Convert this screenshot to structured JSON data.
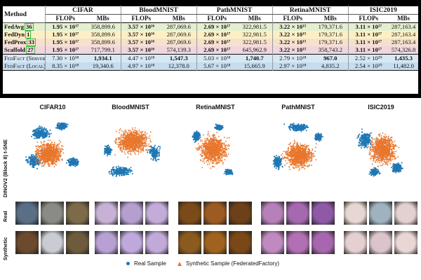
{
  "table": {
    "method_header": "Method",
    "datasets": [
      "CIFAR",
      "BloodMNIST",
      "PathMNIST",
      "RetinaMNIST",
      "ISIC2019"
    ],
    "subheaders": [
      "FLOPs",
      "MBs"
    ],
    "rows": [
      {
        "method": "FedAvg",
        "rank": "36",
        "style": "fedavg",
        "cells": [
          "1.95 × 10¹⁷",
          "358,899.6",
          "3.57 × 10¹⁶",
          "287,069.6",
          "2.69 × 10¹⁷",
          "322,981.5",
          "3.22 × 10¹⁵",
          "179,371.6",
          "3.11 × 10¹⁷",
          "287,163.4"
        ]
      },
      {
        "method": "FedDyn",
        "rank": "1",
        "style": "feddyn",
        "cells": [
          "1.95 × 10¹⁷",
          "358,899.6",
          "3.57 × 10¹⁶",
          "287,069.6",
          "2.69 × 10¹⁷",
          "322,981.5",
          "3.22 × 10¹⁵",
          "179,371.6",
          "3.11 × 10¹⁷",
          "287,163.4"
        ]
      },
      {
        "method": "FedProx",
        "rank": "33",
        "style": "fedprox",
        "cells": [
          "1.95 × 10¹⁷",
          "358,899.6",
          "3.57 × 10¹⁶",
          "287,069.6",
          "2.69 × 10¹⁷",
          "322,981.5",
          "3.22 × 10¹⁵",
          "179,371.6",
          "3.11 × 10¹⁷",
          "287,163.4"
        ]
      },
      {
        "method": "Scaffold",
        "rank": "27",
        "style": "scaffold",
        "cells": [
          "1.95 × 10¹⁷",
          "717,799.1",
          "3.57 × 10¹⁶",
          "574,139.3",
          "2.69 × 10¹⁷",
          "645,962.9",
          "3.22 × 10¹⁵",
          "358,743.2",
          "3.11 × 10¹⁷",
          "574,326.8"
        ]
      }
    ],
    "ff_rows": [
      {
        "method": "FedFact (Server)",
        "style": "ff",
        "cells": [
          "7.30 × 10¹⁸",
          "1,934.1",
          "4.47 × 10¹⁸",
          "1,547.3",
          "5.03 × 10¹⁸",
          "1,740.7",
          "2.79 × 10¹⁸",
          "967.0",
          "2.52 × 10²⁰",
          "1,435.3"
        ]
      },
      {
        "method": "FedFact (Local)",
        "style": "ff2",
        "cells": [
          "8.35 × 10¹⁸",
          "19,340.6",
          "4.97 × 10¹⁸",
          "12,378.0",
          "5.67 × 10¹⁸",
          "15,665.9",
          "2.97 × 10¹⁸",
          "4,835.2",
          "2.54 × 10²⁰",
          "11,482.0"
        ]
      }
    ]
  },
  "figure": {
    "columns": [
      "CIFAR10",
      "BloodMNIST",
      "RetinaMNIST",
      "PathMNIST",
      "ISIC2019"
    ],
    "tsne_label": "DINOV2 (Block 8) t-SNE",
    "row_real": "Real",
    "row_synthetic": "Synthetic",
    "legend_real": "Real Sample",
    "legend_synthetic": "Synthetic Sample (FederatedFactory)",
    "colors": {
      "real": "#1f77b4",
      "synthetic": "#e8762c"
    }
  }
}
